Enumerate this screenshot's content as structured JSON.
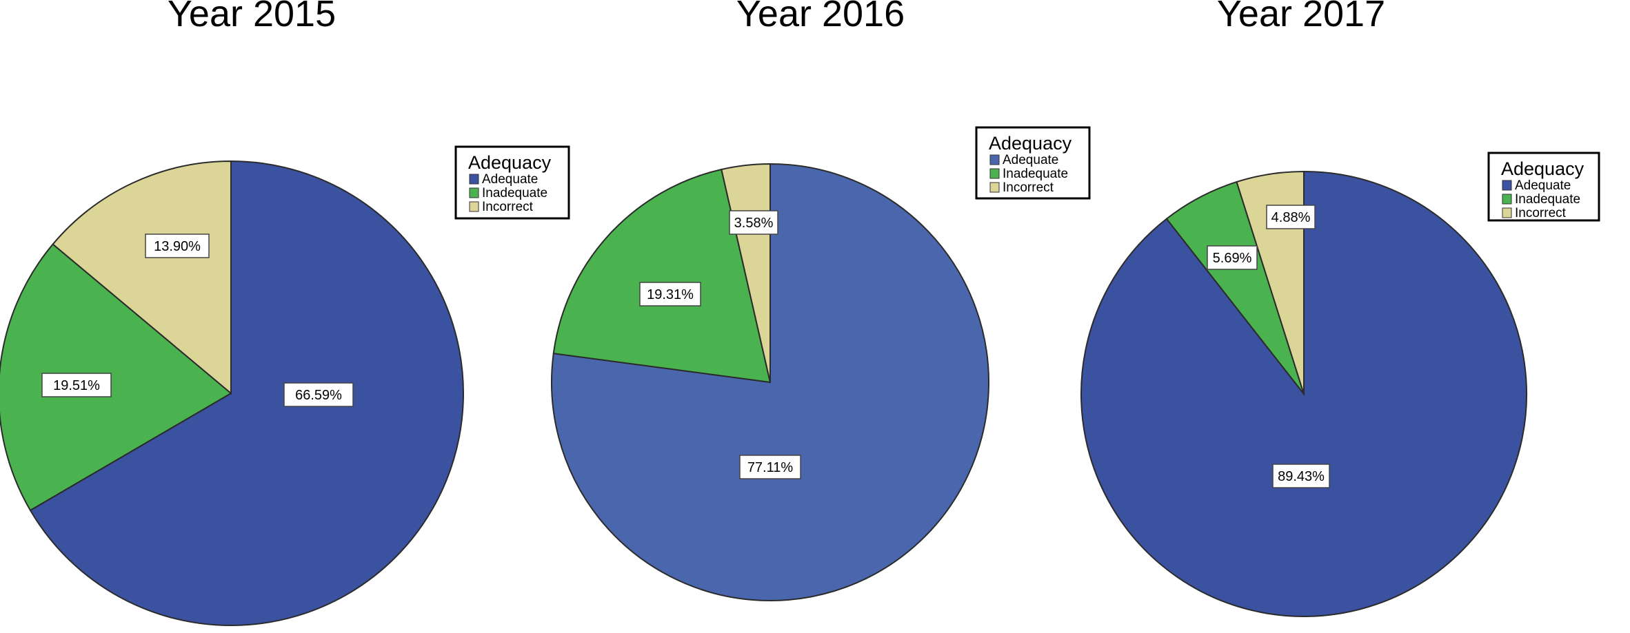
{
  "colors": {
    "Adequate": "#3a52a0",
    "Inadequate": "#4ab34f",
    "Incorrect": "#dbd598",
    "Adequate_2016": "#4a67ad"
  },
  "chart_data": [
    {
      "type": "pie",
      "title": "Year 2015",
      "legend_title": "Adequacy",
      "legend_position": "top-right",
      "categories": [
        "Adequate",
        "Inadequate",
        "Incorrect"
      ],
      "values": [
        66.59,
        19.51,
        13.9
      ],
      "data_labels": [
        "66.59%",
        "19.51%",
        "13.90%"
      ]
    },
    {
      "type": "pie",
      "title": "Year 2016",
      "legend_title": "Adequacy",
      "legend_position": "top-right",
      "categories": [
        "Adequate",
        "Inadequate",
        "Incorrect"
      ],
      "values": [
        77.11,
        19.31,
        3.58
      ],
      "data_labels": [
        "77.11%",
        "19.31%",
        "3.58%"
      ]
    },
    {
      "type": "pie",
      "title": "Year 2017",
      "legend_title": "Adequacy",
      "legend_position": "top-right",
      "categories": [
        "Adequate",
        "Inadequate",
        "Incorrect"
      ],
      "values": [
        89.43,
        5.69,
        4.88
      ],
      "data_labels": [
        "89.43%",
        "5.69%",
        "4.88%"
      ]
    }
  ]
}
